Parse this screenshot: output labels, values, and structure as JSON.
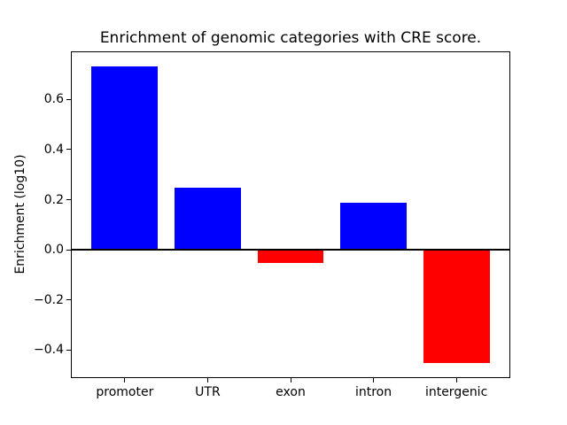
{
  "window": {
    "background_color": "#ffffff",
    "text_color": "#000000",
    "axis_color": "#000000"
  },
  "chart_data": {
    "type": "bar",
    "title": "Enrichment of genomic categories with CRE score.",
    "xlabel": "",
    "ylabel": "Enrichment (log10)",
    "categories": [
      "promoter",
      "UTR",
      "exon",
      "intron",
      "intergenic"
    ],
    "values": [
      0.73,
      0.246,
      -0.054,
      0.187,
      -0.45
    ],
    "positive_color": "#0000ff",
    "negative_color": "#ff0000",
    "ylim": [
      -0.508,
      0.788
    ],
    "yticks": [
      0.6,
      0.4,
      0.2,
      0.0,
      -0.2,
      -0.4
    ],
    "ytick_labels": [
      "0.6",
      "0.4",
      "0.2",
      "0.0",
      "−0.2",
      "−0.4"
    ],
    "zero_line": true,
    "grid": false,
    "legend_position": "none"
  }
}
